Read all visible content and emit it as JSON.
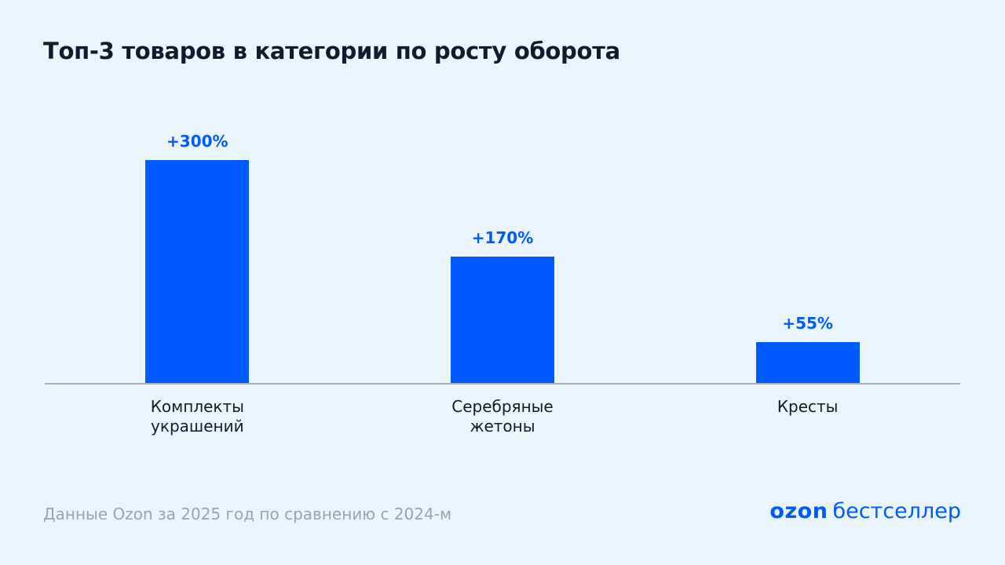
{
  "chart_data": {
    "type": "bar",
    "title": "Топ-3 товаров в категории по росту оборота",
    "categories": [
      "Комплекты украшений",
      "Серебряные жетоны",
      "Кресты"
    ],
    "values": [
      300,
      170,
      55
    ],
    "value_labels": [
      "+300%",
      "+170%",
      "+55%"
    ],
    "color": "#005bff"
  },
  "footer": {
    "source": "Данные Ozon за 2025 год по сравнению с 2024-м",
    "brand": "ozon",
    "brand_sub": "бестселлер"
  }
}
